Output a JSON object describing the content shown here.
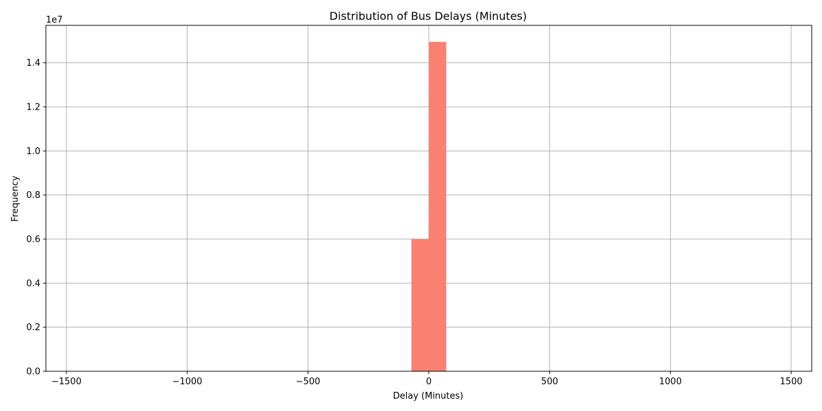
{
  "chart_data": {
    "type": "bar",
    "title": "Distribution of Bus Delays (Minutes)",
    "xlabel": "Delay (Minutes)",
    "ylabel": "Frequency",
    "y_offset_label": "1e7",
    "xlim": [
      -1585,
      1585
    ],
    "ylim": [
      0,
      15700000
    ],
    "x_ticks": [
      -1500,
      -1000,
      -500,
      0,
      500,
      1000,
      1500
    ],
    "x_tick_labels": [
      "−1500",
      "−1000",
      "−500",
      "0",
      "500",
      "1000",
      "1500"
    ],
    "y_ticks": [
      0,
      2000000,
      4000000,
      6000000,
      8000000,
      10000000,
      12000000,
      14000000
    ],
    "y_tick_labels": [
      "0.0",
      "0.2",
      "0.4",
      "0.6",
      "0.8",
      "1.0",
      "1.2",
      "1.4"
    ],
    "grid": true,
    "bar_color": "#fa8072",
    "bins": [
      {
        "x0": -72,
        "x1": 0,
        "value": 6000000
      },
      {
        "x0": 0,
        "x1": 72,
        "value": 14950000
      }
    ]
  }
}
